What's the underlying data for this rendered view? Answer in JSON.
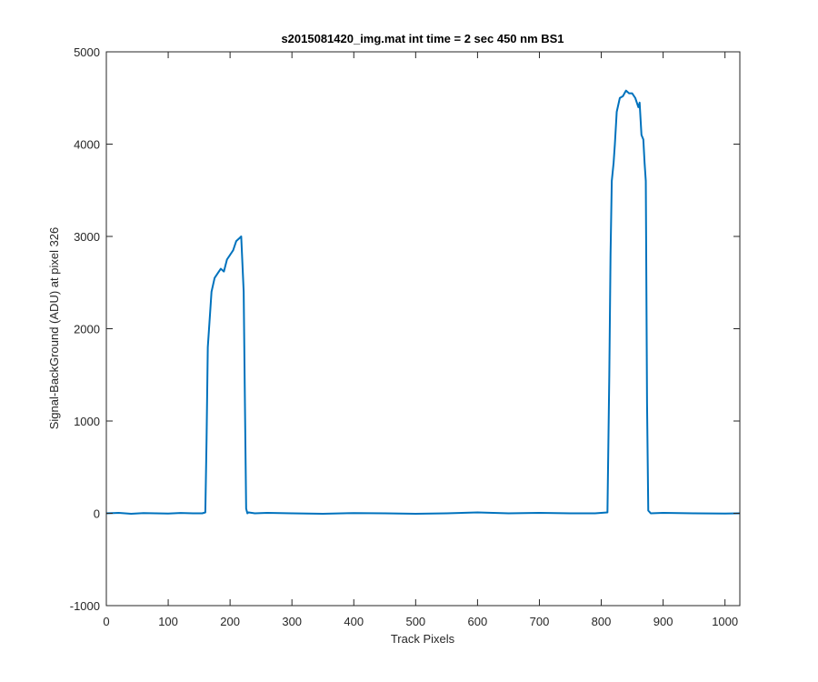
{
  "chart_data": {
    "type": "line",
    "title": "s2015081420_img.mat int time = 2 sec  450 nm BS1",
    "xlabel": "Track Pixels",
    "ylabel": "Signal-BackGround (ADU) at pixel 326",
    "xlim": [
      0,
      1024
    ],
    "ylim": [
      -1000,
      5000
    ],
    "xticks": [
      0,
      100,
      200,
      300,
      400,
      500,
      600,
      700,
      800,
      900,
      1000
    ],
    "yticks": [
      -1000,
      0,
      1000,
      2000,
      3000,
      4000,
      5000
    ],
    "grid": false,
    "line_color": "#0072bd",
    "series": [
      {
        "x": [
          0,
          20,
          40,
          60,
          80,
          100,
          120,
          140,
          155,
          160,
          162,
          164,
          166,
          170,
          175,
          180,
          185,
          190,
          195,
          200,
          205,
          210,
          215,
          218,
          220,
          222,
          224,
          226,
          228,
          230,
          240,
          260,
          300,
          350,
          400,
          450,
          500,
          550,
          600,
          650,
          700,
          750,
          790,
          810,
          813,
          815,
          817,
          820,
          822,
          825,
          830,
          835,
          840,
          845,
          850,
          855,
          860,
          862,
          865,
          868,
          870,
          872,
          874,
          876,
          880,
          900,
          950,
          1000,
          1024
        ],
        "y": [
          0,
          5,
          -5,
          3,
          0,
          -3,
          4,
          0,
          0,
          10,
          800,
          1800,
          2000,
          2400,
          2550,
          2600,
          2650,
          2620,
          2750,
          2800,
          2850,
          2950,
          2980,
          3000,
          2700,
          2400,
          1200,
          50,
          0,
          10,
          0,
          5,
          0,
          -5,
          3,
          0,
          -5,
          0,
          10,
          0,
          5,
          0,
          0,
          10,
          1500,
          2800,
          3600,
          3800,
          4000,
          4350,
          4500,
          4520,
          4580,
          4550,
          4550,
          4500,
          4400,
          4450,
          4100,
          4050,
          3800,
          3600,
          1200,
          30,
          0,
          5,
          0,
          -3,
          0
        ]
      }
    ]
  }
}
